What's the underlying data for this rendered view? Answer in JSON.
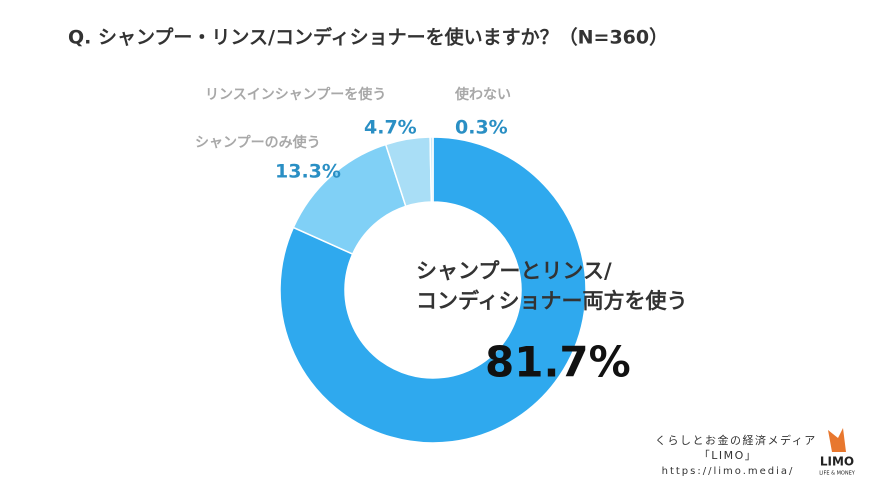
{
  "chart_data": {
    "type": "donut",
    "title": "Q. シャンプー・リンス/コンディショナーを使いますか？（N=360）",
    "categories": [
      "シャンプーとリンス/\nコンディショナー両方を使う",
      "シャンプーのみ使う",
      "リンスインシャンプーを使う",
      "使わない"
    ],
    "values": [
      81.7,
      13.3,
      4.7,
      0.3
    ],
    "value_labels": [
      "81.7%",
      "13.3%",
      "4.7%",
      "0.3%"
    ],
    "colors": [
      "#2fa9ee",
      "#80d0f6",
      "#a9def6",
      "#c8e9f8"
    ]
  },
  "footer": {
    "tagline": "くらしとお金の経済メディア",
    "brand": "「LIMO」",
    "url": "https://limo.media/",
    "logo": "LIMO",
    "logo_sub": "LIFE & MONEY"
  }
}
